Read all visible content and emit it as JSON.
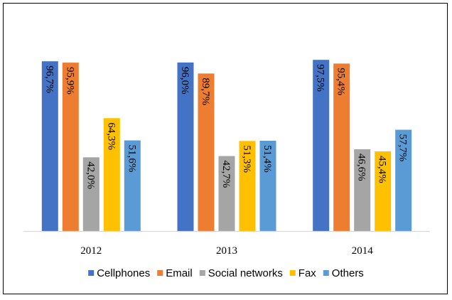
{
  "chart_data": {
    "type": "bar",
    "title": "",
    "xlabel": "",
    "ylabel": "",
    "ylim": [
      0,
      100
    ],
    "grid": false,
    "legend_position": "bottom",
    "categories": [
      "2012",
      "2013",
      "2014"
    ],
    "series": [
      {
        "name": "Cellphones",
        "color": "#4472C4",
        "values": [
          96.7,
          96.0,
          97.5
        ],
        "labels": [
          "96,7%",
          "96,0%",
          "97,5%"
        ]
      },
      {
        "name": "Email",
        "color": "#ED7D31",
        "values": [
          95.9,
          89.7,
          95.4
        ],
        "labels": [
          "95,9%",
          "89,7%",
          "95,4%"
        ]
      },
      {
        "name": "Social networks",
        "color": "#A5A5A5",
        "values": [
          42.0,
          42.7,
          46.6
        ],
        "labels": [
          "42,0%",
          "42,7%",
          "46,6%"
        ]
      },
      {
        "name": "Fax",
        "color": "#FFC000",
        "values": [
          64.3,
          51.3,
          45.4
        ],
        "labels": [
          "64,3%",
          "51,3%",
          "45,4%"
        ]
      },
      {
        "name": "Others",
        "color": "#5B9BD5",
        "values": [
          51.6,
          51.4,
          57.7
        ],
        "labels": [
          "51,6%",
          "51,4%",
          "57,7%"
        ]
      }
    ]
  }
}
